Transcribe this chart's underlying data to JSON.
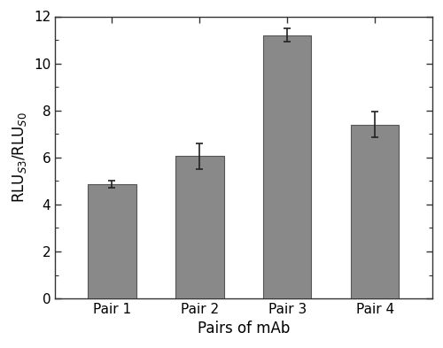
{
  "categories": [
    "Pair 1",
    "Pair 2",
    "Pair 3",
    "Pair 4"
  ],
  "values": [
    4.85,
    6.05,
    11.2,
    7.4
  ],
  "errors": [
    0.15,
    0.55,
    0.28,
    0.55
  ],
  "bar_color": "#898989",
  "bar_edgecolor": "#555555",
  "bar_width": 0.55,
  "xlabel": "Pairs of mAb",
  "ylabel": "RLU$_{S3}$/RLU$_{S0}$",
  "ylim": [
    0,
    12
  ],
  "yticks": [
    0,
    2,
    4,
    6,
    8,
    10,
    12
  ],
  "background_color": "#ffffff",
  "xlabel_fontsize": 12,
  "ylabel_fontsize": 12,
  "tick_fontsize": 11,
  "error_capsize": 3,
  "error_color": "#222222",
  "error_linewidth": 1.2
}
